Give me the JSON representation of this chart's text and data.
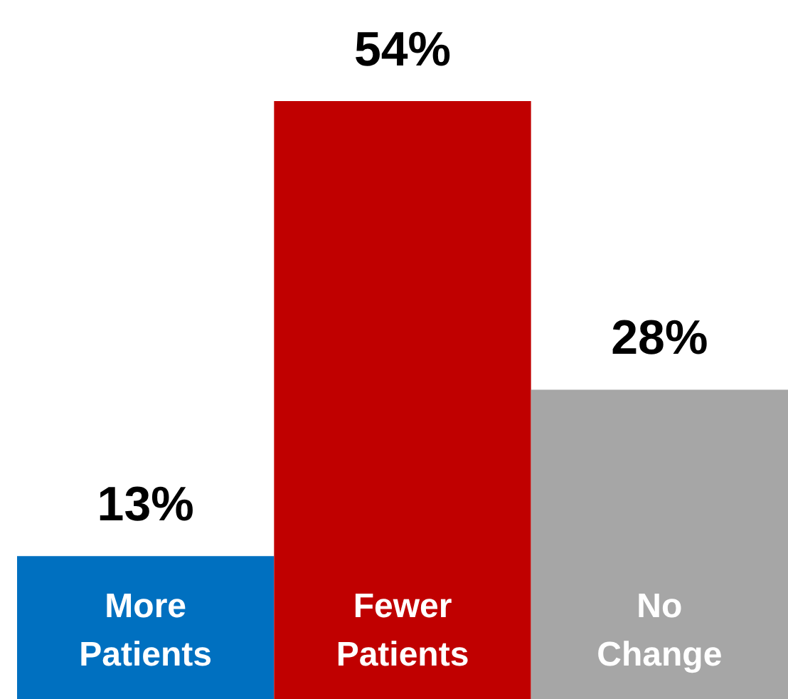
{
  "chart_data": {
    "type": "bar",
    "categories": [
      "More Patients",
      "Fewer Patients",
      "No Change"
    ],
    "values": [
      13,
      54,
      28
    ],
    "colors": [
      "#0070c0",
      "#c00000",
      "#a6a6a6"
    ],
    "value_labels": [
      "13%",
      "54%",
      "28%"
    ],
    "grid": false,
    "legend": false
  }
}
